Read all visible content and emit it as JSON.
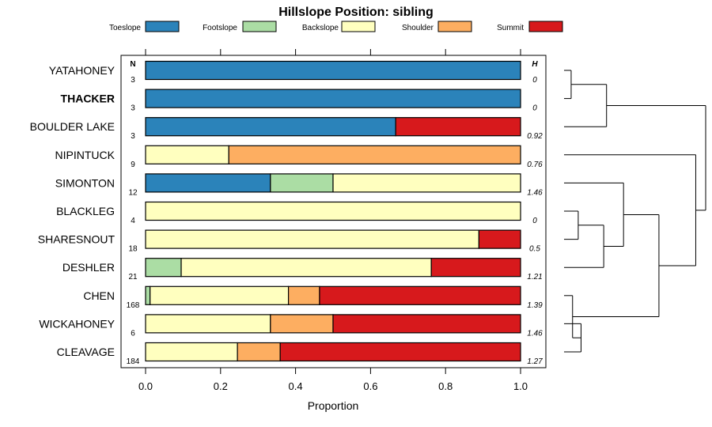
{
  "chart_data": {
    "type": "bar",
    "orientation": "horizontal",
    "stacked": true,
    "title": "Hillslope Position: sibling",
    "xlabel": "Proportion",
    "xlim": [
      0,
      1
    ],
    "xticks": [
      "0.0",
      "0.2",
      "0.4",
      "0.6",
      "0.8",
      "1.0"
    ],
    "n_header": "N",
    "h_header": "H",
    "categories": [
      "YATAHONEY",
      "THACKER",
      "BOULDER LAKE",
      "NIPINTUCK",
      "SIMONTON",
      "BLACKLEG",
      "SHARESNOUT",
      "DESHLER",
      "CHEN",
      "WICKAHONEY",
      "CLEAVAGE"
    ],
    "highlighted": "THACKER",
    "n": [
      "3",
      "3",
      "3",
      "9",
      "12",
      "4",
      "18",
      "21",
      "168",
      "6",
      "184"
    ],
    "h": [
      "0",
      "0",
      "0.92",
      "0.76",
      "1.46",
      "0",
      "0.5",
      "1.21",
      "1.39",
      "1.46",
      "1.27"
    ],
    "series": [
      {
        "name": "Toeslope",
        "color": "#2b83ba",
        "values": [
          1.0,
          1.0,
          0.667,
          0,
          0.333,
          0,
          0,
          0,
          0,
          0,
          0
        ]
      },
      {
        "name": "Footslope",
        "color": "#abdda4",
        "values": [
          0,
          0,
          0,
          0,
          0.167,
          0,
          0,
          0.095,
          0.012,
          0,
          0
        ]
      },
      {
        "name": "Backslope",
        "color": "#ffffbf",
        "values": [
          0,
          0,
          0,
          0.222,
          0.5,
          1.0,
          0.889,
          0.667,
          0.369,
          0.333,
          0.245
        ]
      },
      {
        "name": "Shoulder",
        "color": "#fdae61",
        "values": [
          0,
          0,
          0,
          0.778,
          0,
          0,
          0,
          0,
          0.083,
          0.167,
          0.114
        ]
      },
      {
        "name": "Summit",
        "color": "#d7191c",
        "values": [
          0,
          0,
          0.333,
          0,
          0,
          0,
          0.111,
          0.238,
          0.536,
          0.5,
          0.641
        ]
      }
    ],
    "dendrogram": {
      "leaves": [
        "YATAHONEY",
        "THACKER",
        "BOULDER LAKE",
        "NIPINTUCK",
        "SIMONTON",
        "BLACKLEG",
        "SHARESNOUT",
        "DESHLER",
        "CHEN",
        "WICKAHONEY",
        "CLEAVAGE"
      ],
      "merges": [
        {
          "a": 0,
          "b": 1,
          "height": 0.05
        },
        {
          "a": 5,
          "b": 6,
          "height": 0.1
        },
        {
          "a": 9,
          "b": 10,
          "height": 0.12
        },
        {
          "a": 8,
          "b": "m2",
          "height": 0.06
        },
        {
          "a": "m0",
          "b": 2,
          "height": 0.3
        },
        {
          "a": "m1",
          "b": 7,
          "height": 0.28
        },
        {
          "a": 4,
          "b": "m5",
          "height": 0.42
        },
        {
          "a": "m6",
          "b": "m3",
          "height": 0.67
        },
        {
          "a": 3,
          "b": "m7",
          "height": 0.93
        },
        {
          "a": "m4",
          "b": "m8",
          "height": 1.0
        }
      ]
    }
  }
}
